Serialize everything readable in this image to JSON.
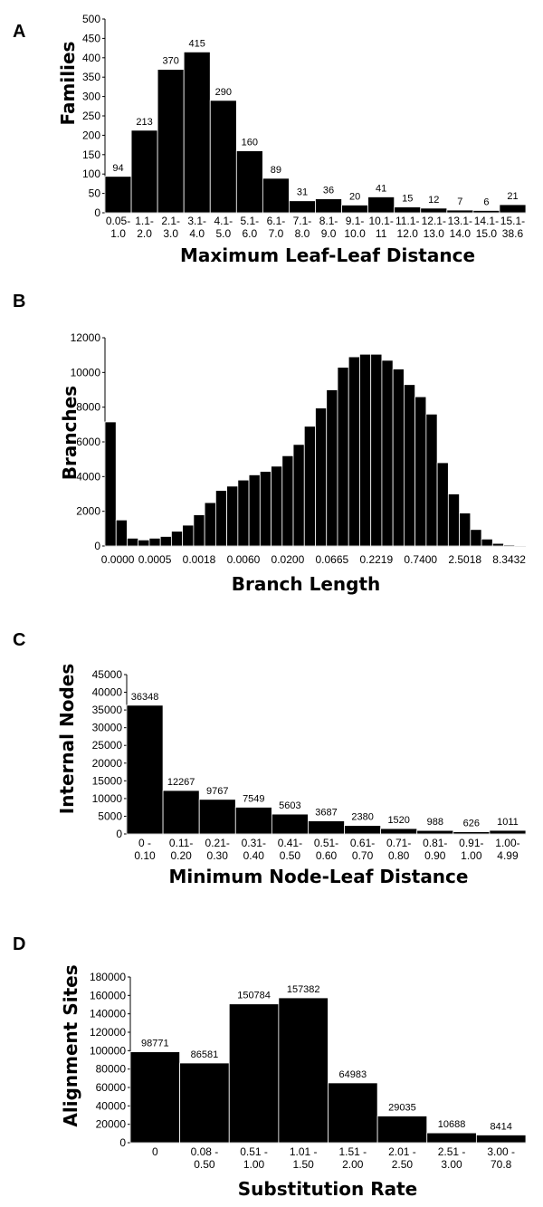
{
  "chart_data": [
    {
      "panel": "A",
      "type": "bar",
      "xlabel": "Maximum Leaf-Leaf Distance",
      "ylabel": "Families",
      "ylim": [
        0,
        500
      ],
      "yticks": [
        0,
        50,
        100,
        150,
        200,
        250,
        300,
        350,
        400,
        450,
        500
      ],
      "categories": [
        "0.05-1.0",
        "1.1-2.0",
        "2.1-3.0",
        "3.1-4.0",
        "4.1-5.0",
        "5.1-6.0",
        "6.1-7.0",
        "7.1-8.0",
        "8.1-9.0",
        "9.1-10.0",
        "10.1-11",
        "11.1-12.0",
        "12.1-13.0",
        "13.1-14.0",
        "14.1-15.0",
        "15.1-38.6"
      ],
      "category_lines": [
        [
          "0.05-",
          "1.0"
        ],
        [
          "1.1-",
          "2.0"
        ],
        [
          "2.1-",
          "3.0"
        ],
        [
          "3.1-",
          "4.0"
        ],
        [
          "4.1-",
          "5.0"
        ],
        [
          "5.1-",
          "6.0"
        ],
        [
          "6.1-",
          "7.0"
        ],
        [
          "7.1-",
          "8.0"
        ],
        [
          "8.1-",
          "9.0"
        ],
        [
          "9.1-",
          "10.0"
        ],
        [
          "10.1-",
          "11"
        ],
        [
          "11.1-",
          "12.0"
        ],
        [
          "12.1-",
          "13.0"
        ],
        [
          "13.1-",
          "14.0"
        ],
        [
          "14.1-",
          "15.0"
        ],
        [
          "15.1-",
          "38.6"
        ]
      ],
      "values": [
        94,
        213,
        370,
        415,
        290,
        160,
        89,
        31,
        36,
        20,
        41,
        15,
        12,
        7,
        6,
        21
      ],
      "data_labels": [
        "94",
        "213",
        "370",
        "415",
        "290",
        "160",
        "89",
        "31",
        "36",
        "20",
        "41",
        "15",
        "12",
        "7",
        "6",
        "21"
      ]
    },
    {
      "panel": "B",
      "type": "bar",
      "xlabel": "Branch Length",
      "ylabel": "Branches",
      "ylim": [
        0,
        12000
      ],
      "yticks": [
        0,
        2000,
        4000,
        6000,
        8000,
        10000,
        12000
      ],
      "xtick_labels": [
        "0.0000",
        "0.0005",
        "0.0018",
        "0.0060",
        "0.0200",
        "0.0665",
        "0.2219",
        "0.7400",
        "2.5018",
        "8.3432"
      ],
      "values": [
        7150,
        1500,
        450,
        350,
        450,
        550,
        850,
        1200,
        1800,
        2500,
        3200,
        3450,
        3800,
        4100,
        4300,
        4600,
        5200,
        5850,
        6900,
        7950,
        9000,
        10300,
        10900,
        11050,
        11050,
        10700,
        10200,
        9300,
        8600,
        7600,
        4800,
        3000,
        1900,
        950,
        400,
        150,
        60,
        30
      ]
    },
    {
      "panel": "C",
      "type": "bar",
      "xlabel": "Minimum Node-Leaf Distance",
      "ylabel": "Internal Nodes",
      "ylim": [
        0,
        45000
      ],
      "yticks": [
        0,
        5000,
        10000,
        15000,
        20000,
        25000,
        30000,
        35000,
        40000,
        45000
      ],
      "categories": [
        "0 - 0.10",
        "0.11-0.20",
        "0.21-0.30",
        "0.31-0.40",
        "0.41-0.50",
        "0.51-0.60",
        "0.61-0.70",
        "0.71-0.80",
        "0.81-0.90",
        "0.91-1.00",
        "1.00-4.99"
      ],
      "category_lines": [
        [
          "0 -",
          "0.10"
        ],
        [
          "0.11-",
          "0.20"
        ],
        [
          "0.21-",
          "0.30"
        ],
        [
          "0.31-",
          "0.40"
        ],
        [
          "0.41-",
          "0.50"
        ],
        [
          "0.51-",
          "0.60"
        ],
        [
          "0.61-",
          "0.70"
        ],
        [
          "0.71-",
          "0.80"
        ],
        [
          "0.81-",
          "0.90"
        ],
        [
          "0.91-",
          "1.00"
        ],
        [
          "1.00-",
          "4.99"
        ]
      ],
      "values": [
        36348,
        12267,
        9767,
        7549,
        5603,
        3687,
        2380,
        1520,
        988,
        626,
        1011
      ],
      "data_labels": [
        "36348",
        "12267",
        "9767",
        "7549",
        "5603",
        "3687",
        "2380",
        "1520",
        "988",
        "626",
        "1011"
      ]
    },
    {
      "panel": "D",
      "type": "bar",
      "xlabel": "Substitution Rate",
      "ylabel": "Alignment Sites",
      "ylim": [
        0,
        180000
      ],
      "yticks": [
        0,
        20000,
        40000,
        60000,
        80000,
        100000,
        120000,
        140000,
        160000,
        180000
      ],
      "categories": [
        "0",
        "0.08 - 0.50",
        "0.51 - 1.00",
        "1.01 - 1.50",
        "1.51 - 2.00",
        "2.01 - 2.50",
        "2.51 - 3.00",
        "3.00 - 70.8"
      ],
      "category_lines": [
        [
          "0",
          ""
        ],
        [
          "0.08 -",
          "0.50"
        ],
        [
          "0.51 -",
          "1.00"
        ],
        [
          "1.01 -",
          "1.50"
        ],
        [
          "1.51 -",
          "2.00"
        ],
        [
          "2.01 -",
          "2.50"
        ],
        [
          "2.51 -",
          "3.00"
        ],
        [
          "3.00 -",
          "70.8"
        ]
      ],
      "values": [
        98771,
        86581,
        150784,
        157382,
        64983,
        29035,
        10688,
        8414
      ],
      "data_labels": [
        "98771",
        "86581",
        "150784",
        "157382",
        "64983",
        "29035",
        "10688",
        "8414"
      ]
    }
  ]
}
